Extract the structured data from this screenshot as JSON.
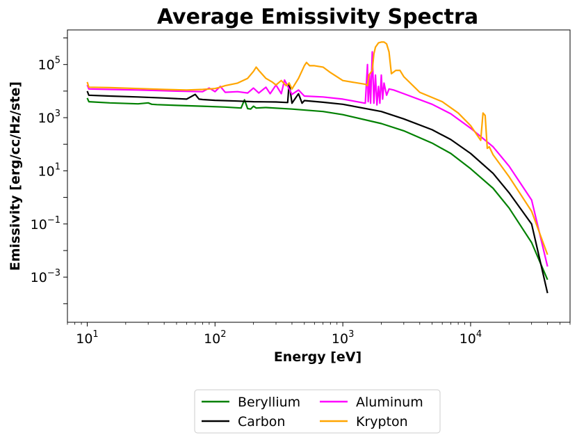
{
  "chart_data": {
    "type": "line",
    "title": "Average Emissivity Spectra",
    "xlabel": "Energy [eV]",
    "ylabel": "Emissivity [erg/cc/Hz/ste]",
    "xscale": "log",
    "yscale": "log",
    "xlim": [
      7,
      60000
    ],
    "ylim": [
      2e-05,
      2000000
    ],
    "xticks": [
      {
        "base": "10",
        "exp": "1"
      },
      {
        "base": "10",
        "exp": "2"
      },
      {
        "base": "10",
        "exp": "3"
      },
      {
        "base": "10",
        "exp": "4"
      }
    ],
    "xtick_values": [
      10,
      100,
      1000,
      10000
    ],
    "yticks": [
      {
        "base": "10",
        "exp": "−3"
      },
      {
        "base": "10",
        "exp": "−1"
      },
      {
        "base": "10",
        "exp": "1"
      },
      {
        "base": "10",
        "exp": "3"
      },
      {
        "base": "10",
        "exp": "5"
      }
    ],
    "ytick_values": [
      0.001,
      0.1,
      10,
      1000,
      100000
    ],
    "legend_position": "bottom-center",
    "series": [
      {
        "name": "Beryllium",
        "color": "#008000",
        "x": [
          10,
          10.3,
          15,
          25,
          30,
          32,
          35,
          50,
          80,
          120,
          160,
          170,
          180,
          190,
          200,
          210,
          250,
          400,
          700,
          1000,
          2000,
          3000,
          5000,
          7000,
          10000,
          15000,
          20000,
          30000,
          40000
        ],
        "y": [
          5500,
          4000,
          3600,
          3300,
          3600,
          3200,
          3100,
          2900,
          2700,
          2500,
          2300,
          4700,
          2200,
          2100,
          2700,
          2300,
          2400,
          2100,
          1700,
          1300,
          600,
          320,
          110,
          45,
          12,
          2.2,
          0.4,
          0.02,
          0.0008
        ]
      },
      {
        "name": "Carbon",
        "color": "#000000",
        "x": [
          10,
          10.3,
          15,
          25,
          40,
          60,
          70,
          75,
          80,
          100,
          150,
          200,
          300,
          370,
          380,
          400,
          450,
          480,
          500,
          700,
          1000,
          2000,
          3000,
          5000,
          7000,
          10000,
          15000,
          20000,
          30000,
          40000
        ],
        "y": [
          10000,
          7000,
          6500,
          6000,
          5500,
          5000,
          7500,
          5000,
          4800,
          4500,
          4200,
          4000,
          3900,
          3700,
          20000,
          3500,
          8000,
          3500,
          4400,
          3800,
          3200,
          1700,
          900,
          350,
          150,
          45,
          8,
          1.5,
          0.1,
          0.00025
        ]
      },
      {
        "name": "Aluminum",
        "color": "#ff00ff",
        "x": [
          10,
          10.3,
          15,
          25,
          50,
          80,
          90,
          100,
          110,
          120,
          150,
          180,
          200,
          220,
          250,
          270,
          300,
          330,
          350,
          400,
          450,
          500,
          700,
          1000,
          1500,
          1560,
          1580,
          1620,
          1650,
          1700,
          1750,
          1800,
          1850,
          1900,
          1950,
          2000,
          2050,
          2100,
          2200,
          2300,
          2500,
          3000,
          5000,
          7000,
          10000,
          15000,
          20000,
          30000,
          40000
        ],
        "y": [
          17000,
          12000,
          11500,
          11000,
          10000,
          9500,
          13000,
          9500,
          15000,
          9000,
          9500,
          8500,
          13000,
          8500,
          14000,
          8000,
          17000,
          8000,
          26000,
          7500,
          11000,
          6500,
          6000,
          5000,
          3500,
          100000,
          4000,
          40000,
          3500,
          300000,
          3500,
          40000,
          3000,
          15000,
          3500,
          40000,
          5000,
          20000,
          7000,
          12000,
          11000,
          8000,
          3200,
          1400,
          400,
          80,
          15,
          0.8,
          0.0025
        ]
      },
      {
        "name": "Krypton",
        "color": "#ffa500",
        "x": [
          10,
          10.3,
          15,
          25,
          40,
          60,
          80,
          100,
          110,
          120,
          150,
          180,
          200,
          210,
          220,
          250,
          280,
          300,
          330,
          360,
          380,
          400,
          450,
          500,
          520,
          550,
          600,
          700,
          800,
          1000,
          1500,
          1560,
          1600,
          1700,
          1750,
          1800,
          1900,
          2000,
          2100,
          2200,
          2300,
          2400,
          2600,
          2800,
          3000,
          4000,
          6000,
          8000,
          10000,
          12000,
          12500,
          13000,
          13500,
          14000,
          15000,
          20000,
          30000,
          40000
        ],
        "y": [
          22000,
          14000,
          13500,
          12500,
          11500,
          11000,
          11500,
          12500,
          14000,
          16000,
          20000,
          30000,
          55000,
          80000,
          60000,
          30000,
          22000,
          17000,
          25000,
          16000,
          20000,
          12000,
          30000,
          90000,
          120000,
          90000,
          90000,
          80000,
          50000,
          25000,
          18000,
          16000,
          40000,
          60000,
          250000,
          450000,
          650000,
          700000,
          700000,
          600000,
          300000,
          45000,
          60000,
          60000,
          35000,
          9000,
          4000,
          1500,
          500,
          140,
          1500,
          1200,
          70,
          80,
          40,
          6,
          0.3,
          0.007
        ]
      }
    ]
  }
}
